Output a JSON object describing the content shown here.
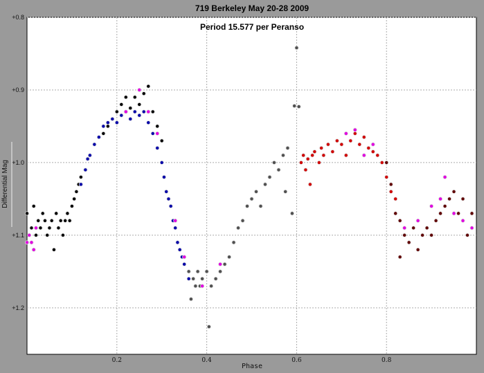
{
  "chart_data": {
    "type": "scatter",
    "title": "719 Berkeley  May 20-28 2009",
    "subtitle": "Period 15.577 per Peranso",
    "xlabel": "Phase",
    "ylabel": "Differential Mag",
    "xlim": [
      0,
      1
    ],
    "ylim": [
      0.8,
      1.264
    ],
    "y_inverted": true,
    "grid": true,
    "x_ticks": [
      {
        "v": 0.2,
        "label": "0.2"
      },
      {
        "v": 0.4,
        "label": "0.4"
      },
      {
        "v": 0.6,
        "label": "0.6"
      },
      {
        "v": 0.8,
        "label": "0.8"
      }
    ],
    "y_ticks": [
      {
        "v": 0.8,
        "label": "+0.8"
      },
      {
        "v": 0.9,
        "label": "+0.9"
      },
      {
        "v": 1.0,
        "label": "+1.0"
      },
      {
        "v": 1.1,
        "label": "+1.1"
      },
      {
        "v": 1.2,
        "label": "+1.2"
      }
    ],
    "series": [
      {
        "name": "black",
        "color": "#000000",
        "points": [
          [
            0.0,
            1.07
          ],
          [
            0.01,
            1.09
          ],
          [
            0.015,
            1.06
          ],
          [
            0.02,
            1.1
          ],
          [
            0.025,
            1.08
          ],
          [
            0.03,
            1.09
          ],
          [
            0.035,
            1.07
          ],
          [
            0.04,
            1.08
          ],
          [
            0.045,
            1.1
          ],
          [
            0.05,
            1.09
          ],
          [
            0.055,
            1.08
          ],
          [
            0.06,
            1.12
          ],
          [
            0.065,
            1.07
          ],
          [
            0.07,
            1.09
          ],
          [
            0.075,
            1.08
          ],
          [
            0.08,
            1.1
          ],
          [
            0.085,
            1.08
          ],
          [
            0.09,
            1.07
          ],
          [
            0.095,
            1.08
          ],
          [
            0.1,
            1.06
          ],
          [
            0.105,
            1.05
          ],
          [
            0.11,
            1.04
          ],
          [
            0.115,
            1.03
          ],
          [
            0.12,
            1.02
          ],
          [
            0.17,
            0.96
          ],
          [
            0.18,
            0.95
          ],
          [
            0.2,
            0.93
          ],
          [
            0.21,
            0.92
          ],
          [
            0.22,
            0.91
          ],
          [
            0.23,
            0.925
          ],
          [
            0.24,
            0.91
          ],
          [
            0.25,
            0.92
          ],
          [
            0.26,
            0.905
          ],
          [
            0.27,
            0.895
          ],
          [
            0.28,
            0.93
          ],
          [
            0.29,
            0.95
          ],
          [
            0.3,
            0.97
          ]
        ]
      },
      {
        "name": "blue",
        "color": "#0000a8",
        "points": [
          [
            0.12,
            1.03
          ],
          [
            0.13,
            1.01
          ],
          [
            0.135,
            0.995
          ],
          [
            0.14,
            0.99
          ],
          [
            0.15,
            0.975
          ],
          [
            0.16,
            0.965
          ],
          [
            0.17,
            0.95
          ],
          [
            0.18,
            0.945
          ],
          [
            0.19,
            0.94
          ],
          [
            0.2,
            0.945
          ],
          [
            0.21,
            0.935
          ],
          [
            0.22,
            0.93
          ],
          [
            0.23,
            0.94
          ],
          [
            0.24,
            0.93
          ],
          [
            0.25,
            0.935
          ],
          [
            0.26,
            0.93
          ],
          [
            0.27,
            0.945
          ],
          [
            0.28,
            0.96
          ],
          [
            0.29,
            0.98
          ],
          [
            0.3,
            1.0
          ],
          [
            0.305,
            1.02
          ],
          [
            0.31,
            1.04
          ],
          [
            0.315,
            1.05
          ],
          [
            0.32,
            1.06
          ],
          [
            0.325,
            1.08
          ],
          [
            0.33,
            1.09
          ],
          [
            0.335,
            1.11
          ],
          [
            0.34,
            1.12
          ],
          [
            0.345,
            1.13
          ],
          [
            0.35,
            1.14
          ],
          [
            0.36,
            1.16
          ]
        ]
      },
      {
        "name": "gray",
        "color": "#505050",
        "points": [
          [
            0.36,
            1.15
          ],
          [
            0.37,
            1.16
          ],
          [
            0.375,
            1.17
          ],
          [
            0.38,
            1.15
          ],
          [
            0.385,
            1.17
          ],
          [
            0.39,
            1.16
          ],
          [
            0.4,
            1.15
          ],
          [
            0.41,
            1.17
          ],
          [
            0.42,
            1.16
          ],
          [
            0.43,
            1.15
          ],
          [
            0.44,
            1.14
          ],
          [
            0.45,
            1.13
          ],
          [
            0.46,
            1.11
          ],
          [
            0.47,
            1.09
          ],
          [
            0.48,
            1.08
          ],
          [
            0.49,
            1.06
          ],
          [
            0.5,
            1.05
          ],
          [
            0.51,
            1.04
          ],
          [
            0.52,
            1.06
          ],
          [
            0.53,
            1.03
          ],
          [
            0.54,
            1.02
          ],
          [
            0.55,
            1.0
          ],
          [
            0.56,
            1.01
          ],
          [
            0.57,
            0.99
          ],
          [
            0.575,
            1.04
          ],
          [
            0.58,
            0.98
          ],
          [
            0.59,
            1.07
          ],
          [
            0.595,
            0.922
          ],
          [
            0.6,
            0.842
          ],
          [
            0.605,
            0.923
          ],
          [
            0.405,
            1.226
          ],
          [
            0.365,
            1.188
          ]
        ]
      },
      {
        "name": "red",
        "color": "#d00000",
        "points": [
          [
            0.61,
            1.0
          ],
          [
            0.615,
            0.99
          ],
          [
            0.62,
            1.01
          ],
          [
            0.625,
            0.995
          ],
          [
            0.63,
            1.03
          ],
          [
            0.635,
            0.99
          ],
          [
            0.64,
            0.985
          ],
          [
            0.65,
            1.0
          ],
          [
            0.655,
            0.98
          ],
          [
            0.66,
            0.99
          ],
          [
            0.67,
            0.975
          ],
          [
            0.68,
            0.985
          ],
          [
            0.69,
            0.97
          ],
          [
            0.7,
            0.975
          ],
          [
            0.71,
            0.99
          ],
          [
            0.72,
            0.97
          ],
          [
            0.73,
            0.96
          ],
          [
            0.74,
            0.975
          ],
          [
            0.75,
            0.965
          ],
          [
            0.76,
            0.98
          ],
          [
            0.77,
            0.985
          ],
          [
            0.78,
            0.99
          ],
          [
            0.79,
            1.0
          ],
          [
            0.8,
            1.02
          ],
          [
            0.81,
            1.04
          ],
          [
            0.82,
            1.05
          ]
        ]
      },
      {
        "name": "dark-red",
        "color": "#600000",
        "points": [
          [
            0.8,
            1.0
          ],
          [
            0.81,
            1.03
          ],
          [
            0.82,
            1.07
          ],
          [
            0.83,
            1.08
          ],
          [
            0.84,
            1.1
          ],
          [
            0.85,
            1.11
          ],
          [
            0.86,
            1.09
          ],
          [
            0.87,
            1.12
          ],
          [
            0.88,
            1.1
          ],
          [
            0.89,
            1.09
          ],
          [
            0.9,
            1.1
          ],
          [
            0.91,
            1.08
          ],
          [
            0.92,
            1.07
          ],
          [
            0.93,
            1.06
          ],
          [
            0.94,
            1.05
          ],
          [
            0.95,
            1.04
          ],
          [
            0.96,
            1.07
          ],
          [
            0.97,
            1.05
          ],
          [
            0.98,
            1.1
          ],
          [
            0.99,
            1.07
          ],
          [
            0.83,
            1.13
          ]
        ]
      },
      {
        "name": "magenta",
        "color": "#e000e0",
        "points": [
          [
            0.0,
            1.11
          ],
          [
            0.005,
            1.1
          ],
          [
            0.01,
            1.11
          ],
          [
            0.015,
            1.12
          ],
          [
            0.02,
            1.09
          ],
          [
            0.22,
            0.93
          ],
          [
            0.25,
            0.9
          ],
          [
            0.27,
            0.93
          ],
          [
            0.29,
            0.96
          ],
          [
            0.33,
            1.08
          ],
          [
            0.35,
            1.13
          ],
          [
            0.39,
            1.17
          ],
          [
            0.43,
            1.14
          ],
          [
            0.71,
            0.96
          ],
          [
            0.73,
            0.955
          ],
          [
            0.75,
            0.99
          ],
          [
            0.77,
            0.975
          ],
          [
            0.84,
            1.09
          ],
          [
            0.87,
            1.08
          ],
          [
            0.9,
            1.06
          ],
          [
            0.92,
            1.05
          ],
          [
            0.93,
            1.02
          ],
          [
            0.95,
            1.07
          ],
          [
            0.97,
            1.08
          ],
          [
            0.99,
            1.09
          ]
        ]
      }
    ]
  }
}
